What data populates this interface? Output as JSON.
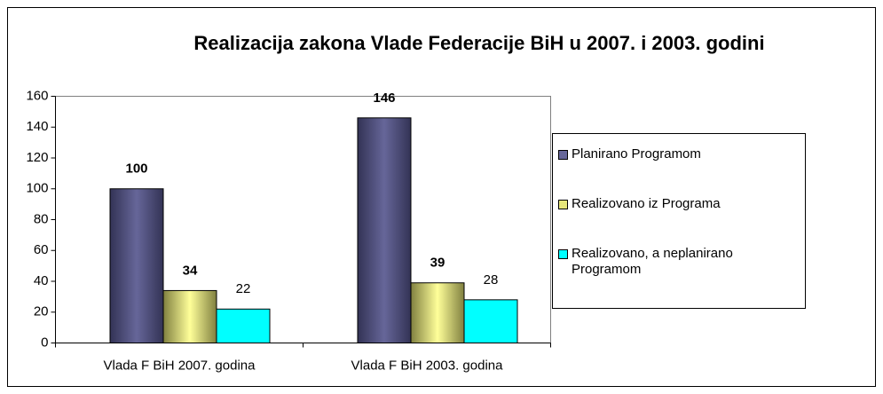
{
  "chart_data": {
    "type": "bar",
    "title": "Realizacija zakona Vlade Federacije BiH u 2007. i 2003. godini",
    "categories": [
      "Vlada F BiH 2007. godina",
      "Vlada F BiH 2003. godina"
    ],
    "series": [
      {
        "name": "Planirano Programom",
        "color": "#666699",
        "values": [
          100,
          146
        ]
      },
      {
        "name": "Realizovano iz Programa",
        "color": "#e6e67a",
        "values": [
          34,
          39
        ]
      },
      {
        "name": "Realizovano, a neplanirano Programom",
        "color": "#00ffff",
        "values": [
          22,
          28
        ]
      }
    ],
    "ylim": [
      0,
      160
    ],
    "yticks": [
      0,
      20,
      40,
      60,
      80,
      100,
      120,
      140,
      160
    ],
    "legend": "right"
  }
}
